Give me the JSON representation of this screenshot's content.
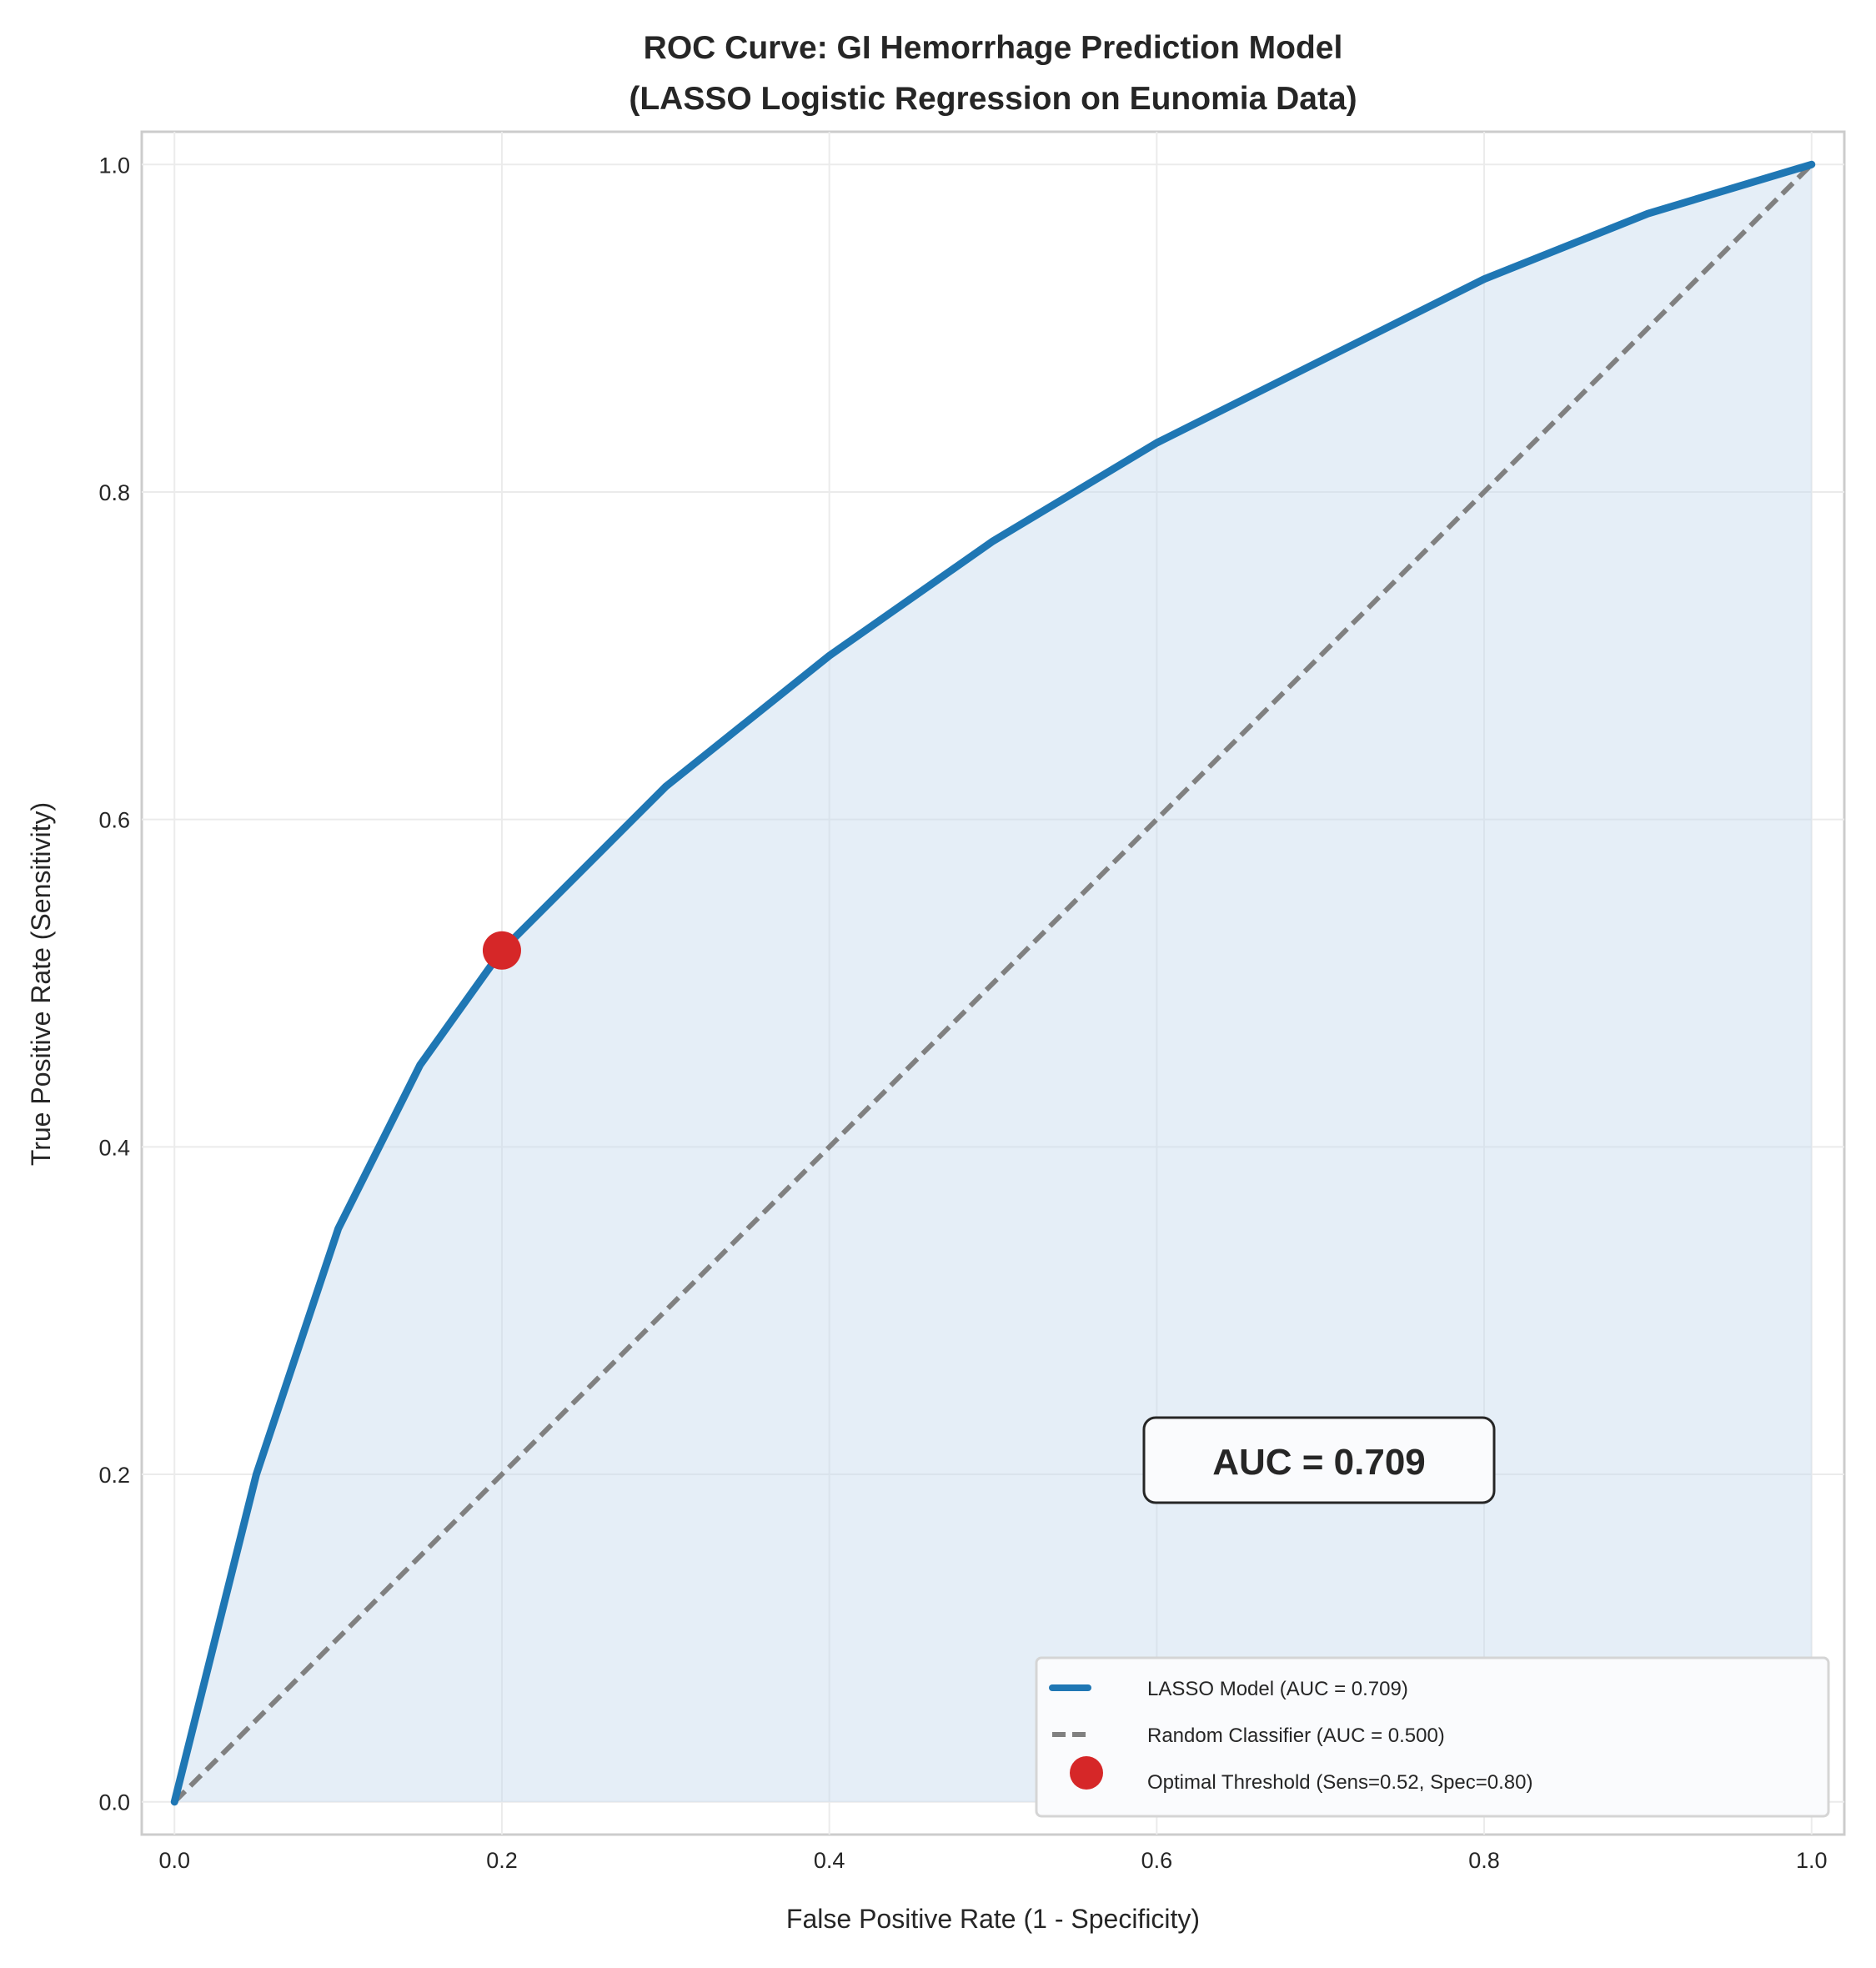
{
  "chart_data": {
    "type": "line",
    "title": [
      "ROC Curve: GI Hemorrhage Prediction Model",
      "(LASSO Logistic Regression on Eunomia Data)"
    ],
    "xlabel": "False Positive Rate (1 - Specificity)",
    "ylabel": "True Positive Rate (Sensitivity)",
    "xlim": [
      -0.02,
      1.02
    ],
    "ylim": [
      -0.02,
      1.02
    ],
    "xticks": [
      "0.0",
      "0.2",
      "0.4",
      "0.6",
      "0.8",
      "1.0"
    ],
    "yticks": [
      "0.0",
      "0.2",
      "0.4",
      "0.6",
      "0.8",
      "1.0"
    ],
    "grid": true,
    "legend_position": "bottom-right",
    "series": [
      {
        "name": "LASSO Model (AUC = 0.709)",
        "style": "solid",
        "color": "#1f77b4",
        "fill_under": "#c6d9ee",
        "x": [
          0.0,
          0.05,
          0.1,
          0.15,
          0.2,
          0.3,
          0.4,
          0.5,
          0.6,
          0.7,
          0.8,
          0.9,
          1.0
        ],
        "y": [
          0.0,
          0.2,
          0.35,
          0.45,
          0.52,
          0.62,
          0.7,
          0.77,
          0.83,
          0.88,
          0.93,
          0.97,
          1.0
        ]
      },
      {
        "name": "Random Classifier (AUC = 0.500)",
        "style": "dashed",
        "color": "#808080",
        "x": [
          0.0,
          1.0
        ],
        "y": [
          0.0,
          1.0
        ]
      },
      {
        "name": "Optimal Threshold (Sens=0.52, Spec=0.80)",
        "style": "marker",
        "color": "#d62728",
        "x": [
          0.2
        ],
        "y": [
          0.52
        ]
      }
    ],
    "annotation": "AUC = 0.709"
  }
}
